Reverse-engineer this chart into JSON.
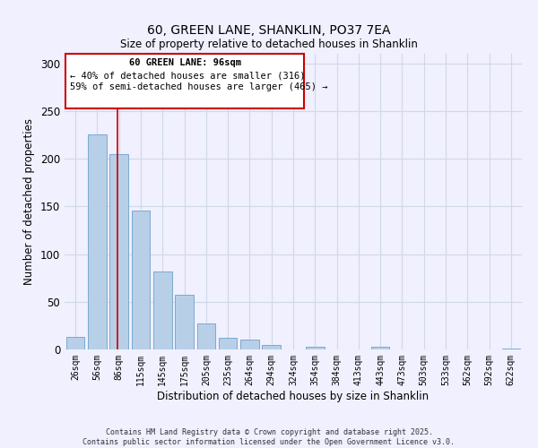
{
  "title": "60, GREEN LANE, SHANKLIN, PO37 7EA",
  "subtitle": "Size of property relative to detached houses in Shanklin",
  "xlabel": "Distribution of detached houses by size in Shanklin",
  "ylabel": "Number of detached properties",
  "bar_labels": [
    "26sqm",
    "56sqm",
    "86sqm",
    "115sqm",
    "145sqm",
    "175sqm",
    "205sqm",
    "235sqm",
    "264sqm",
    "294sqm",
    "324sqm",
    "354sqm",
    "384sqm",
    "413sqm",
    "443sqm",
    "473sqm",
    "503sqm",
    "533sqm",
    "562sqm",
    "592sqm",
    "622sqm"
  ],
  "bar_values": [
    13,
    225,
    205,
    146,
    82,
    57,
    27,
    12,
    10,
    5,
    0,
    3,
    0,
    0,
    3,
    0,
    0,
    0,
    0,
    0,
    1
  ],
  "bar_color": "#b8cfe8",
  "bar_edge_color": "#7aaacf",
  "vline_color": "#cc0000",
  "vline_pos": 1.93,
  "annotation_title": "60 GREEN LANE: 96sqm",
  "annotation_line1": "← 40% of detached houses are smaller (316)",
  "annotation_line2": "59% of semi-detached houses are larger (465) →",
  "annotation_box_color": "#cc0000",
  "ylim": [
    0,
    310
  ],
  "yticks": [
    0,
    50,
    100,
    150,
    200,
    250,
    300
  ],
  "footer_line1": "Contains HM Land Registry data © Crown copyright and database right 2025.",
  "footer_line2": "Contains public sector information licensed under the Open Government Licence v3.0.",
  "bg_color": "#f0f0ff",
  "grid_color": "#d0d8e8"
}
